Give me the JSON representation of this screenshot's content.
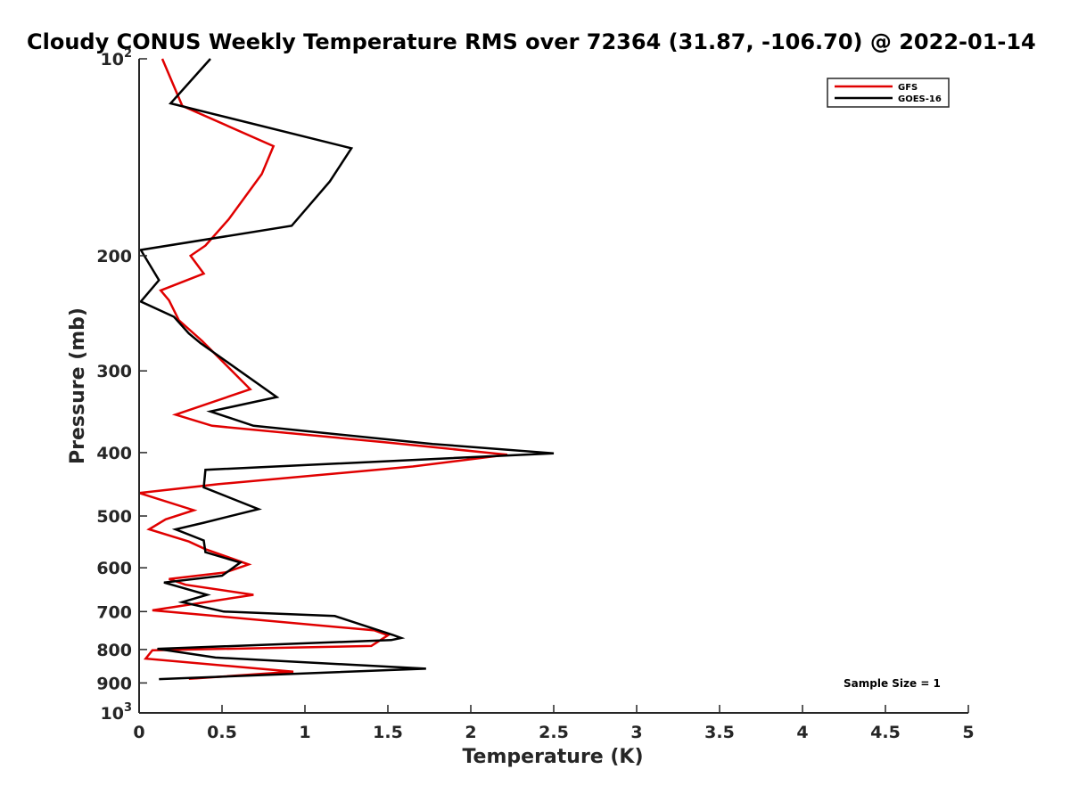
{
  "chart_data": {
    "type": "line",
    "title": "Cloudy CONUS Weekly Temperature RMS over 72364 (31.87, -106.70) @ 2022-01-14",
    "xlabel": "Temperature (K)",
    "ylabel": "Pressure (mb)",
    "xlim": [
      0,
      5
    ],
    "ylim": [
      100,
      1000
    ],
    "y_scale": "log",
    "y_reversed": true,
    "grid": false,
    "legend_position": "top-right",
    "x_ticks": [
      "0",
      "0.5",
      "1",
      "1.5",
      "2",
      "2.5",
      "3",
      "3.5",
      "4",
      "4.5",
      "5"
    ],
    "x_tick_values": [
      0,
      0.5,
      1,
      1.5,
      2,
      2.5,
      3,
      3.5,
      4,
      4.5,
      5
    ],
    "y_ticks": [
      {
        "base": "10",
        "exp": "2",
        "text": ""
      },
      {
        "text": "200"
      },
      {
        "text": "300"
      },
      {
        "text": "400"
      },
      {
        "text": "500"
      },
      {
        "text": "600"
      },
      {
        "text": "700"
      },
      {
        "text": "800"
      },
      {
        "text": "900"
      },
      {
        "base": "10",
        "exp": "3",
        "text": ""
      }
    ],
    "y_tick_values": [
      100,
      200,
      300,
      400,
      500,
      600,
      700,
      800,
      900,
      1000
    ],
    "annotation": "Sample Size = 1",
    "series": [
      {
        "name": "GFS",
        "color": "#e00000",
        "x": [
          0.14,
          0.26,
          0.81,
          0.74,
          0.54,
          0.4,
          0.31,
          0.39,
          0.13,
          0.18,
          0.24,
          0.38,
          0.67,
          0.22,
          0.44,
          1.5,
          2.22,
          1.65,
          0.48,
          0.0,
          0.33,
          0.16,
          0.06,
          0.3,
          0.4,
          0.66,
          0.52,
          0.18,
          0.28,
          0.69,
          0.08,
          0.38,
          1.42,
          1.5,
          1.4,
          0.08,
          0.04,
          0.93,
          0.3
        ],
        "y": [
          100,
          118,
          136,
          150,
          176,
          193,
          200,
          213,
          226,
          234,
          251,
          270,
          320,
          350,
          364,
          386,
          403,
          420,
          447,
          461,
          490,
          506,
          524,
          547,
          562,
          593,
          610,
          624,
          637,
          660,
          697,
          708,
          748,
          761,
          790,
          802,
          826,
          865,
          887
        ]
      },
      {
        "name": "GOES-16",
        "color": "#000000",
        "x": [
          0.43,
          0.19,
          1.28,
          1.15,
          0.92,
          0.01,
          0.12,
          0.01,
          0.21,
          0.3,
          0.37,
          0.83,
          0.43,
          0.69,
          1.77,
          2.5,
          0.4,
          0.39,
          0.72,
          0.39,
          0.22,
          0.39,
          0.4,
          0.61,
          0.5,
          0.15,
          0.41,
          0.26,
          0.51,
          1.18,
          1.53,
          1.58,
          1.52,
          0.11,
          0.46,
          1.73,
          0.12
        ],
        "y": [
          100,
          117,
          137,
          154,
          180,
          196,
          218,
          235,
          248,
          263,
          272,
          329,
          346,
          364,
          388,
          401,
          425,
          452,
          488,
          512,
          524,
          545,
          568,
          589,
          617,
          632,
          660,
          677,
          700,
          711,
          760,
          768,
          774,
          798,
          823,
          856,
          888
        ]
      }
    ]
  }
}
